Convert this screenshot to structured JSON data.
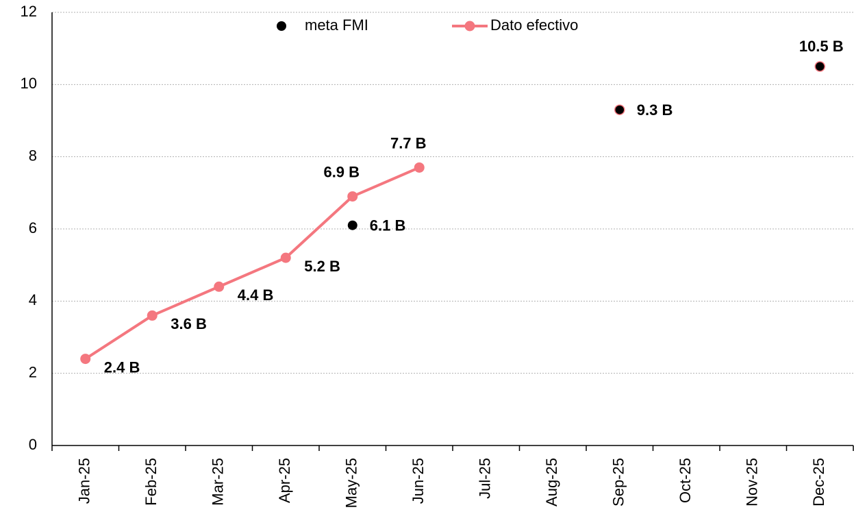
{
  "chart_data": {
    "type": "line",
    "categories": [
      "Jan-25",
      "Feb-25",
      "Mar-25",
      "Apr-25",
      "May-25",
      "Jun-25",
      "Jul-25",
      "Aug-25",
      "Sep-25",
      "Oct-25",
      "Nov-25",
      "Dec-25"
    ],
    "series": [
      {
        "name": "meta FMI",
        "type": "scatter",
        "color": "#000000",
        "label_color": "#404040",
        "values": [
          null,
          null,
          null,
          null,
          6.1,
          null,
          null,
          null,
          9.3,
          null,
          null,
          10.5
        ],
        "value_labels": [
          null,
          null,
          null,
          null,
          "6.1 B",
          null,
          null,
          null,
          "9.3 B",
          null,
          null,
          "10.5 B"
        ]
      },
      {
        "name": "Dato efectivo",
        "type": "line",
        "color": "#f4777f",
        "label_color": "#e00000",
        "values": [
          2.4,
          3.6,
          4.4,
          5.2,
          6.9,
          7.7,
          null,
          null,
          null,
          null,
          null,
          null
        ],
        "value_labels": [
          "2.4 B",
          "3.6 B",
          "4.4 B",
          "5.2 B",
          "6.9 B",
          "7.7 B",
          null,
          null,
          null,
          null,
          null,
          null
        ]
      }
    ],
    "ylim": [
      0,
      12
    ],
    "yticks": [
      0,
      2,
      4,
      6,
      8,
      10,
      12
    ],
    "grid": true,
    "legend": "top"
  }
}
